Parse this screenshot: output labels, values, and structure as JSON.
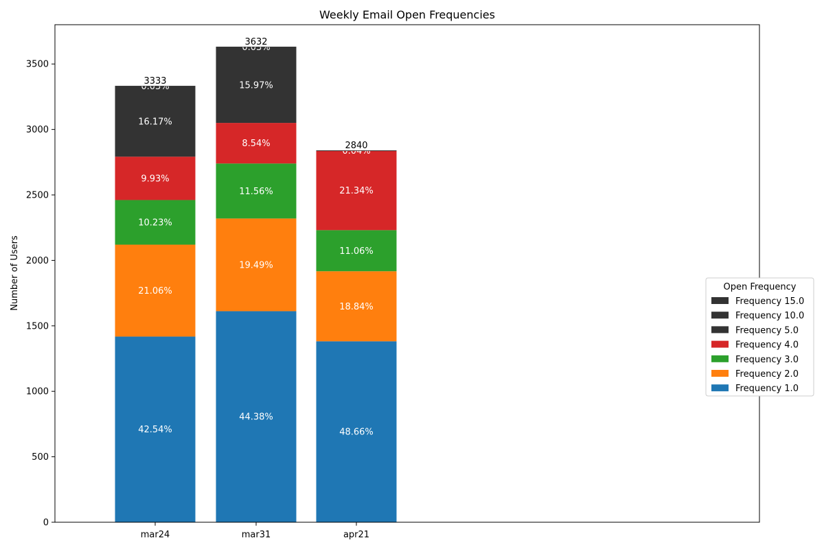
{
  "chart_data": {
    "type": "bar",
    "stacked": true,
    "title": "Weekly Email Open Frequencies",
    "xlabel": "",
    "ylabel": "Number of Users",
    "ylim": [
      0,
      3800
    ],
    "yticks": [
      0,
      500,
      1000,
      1500,
      2000,
      2500,
      3000,
      3500
    ],
    "categories": [
      "mar24",
      "mar31",
      "apr21"
    ],
    "totals": [
      3333,
      3632,
      2840
    ],
    "series": [
      {
        "name": "Frequency 1.0",
        "color": "#1f77b4",
        "values": [
          1418,
          1612,
          1382
        ],
        "labels": [
          "42.54%",
          "44.38%",
          "48.66%"
        ]
      },
      {
        "name": "Frequency 2.0",
        "color": "#ff7f0e",
        "values": [
          702,
          708,
          535
        ],
        "labels": [
          "21.06%",
          "19.49%",
          "18.84%"
        ]
      },
      {
        "name": "Frequency 3.0",
        "color": "#2ca02c",
        "values": [
          341,
          420,
          314
        ],
        "labels": [
          "10.23%",
          "11.56%",
          "11.06%"
        ]
      },
      {
        "name": "Frequency 4.0",
        "color": "#d62728",
        "values": [
          331,
          310,
          606
        ],
        "labels": [
          "9.93%",
          "8.54%",
          "21.34%"
        ]
      },
      {
        "name": "Frequency 5.0",
        "color": "#333333",
        "values": [
          539,
          580,
          1
        ],
        "labels": [
          "16.17%",
          "15.97%",
          "0.04%"
        ]
      },
      {
        "name": "Frequency 10.0",
        "color": "#333333",
        "values": [
          1,
          1,
          1
        ],
        "labels": [
          "0.03%",
          "0.03%",
          ""
        ]
      },
      {
        "name": "Frequency 15.0",
        "color": "#333333",
        "values": [
          1,
          1,
          1
        ],
        "labels": [
          "",
          "",
          ""
        ]
      }
    ],
    "legend": {
      "title": "Open Frequency",
      "placement": "center-right",
      "order": [
        "Frequency 15.0",
        "Frequency 10.0",
        "Frequency 5.0",
        "Frequency 4.0",
        "Frequency 3.0",
        "Frequency 2.0",
        "Frequency 1.0"
      ]
    },
    "grid": false
  }
}
